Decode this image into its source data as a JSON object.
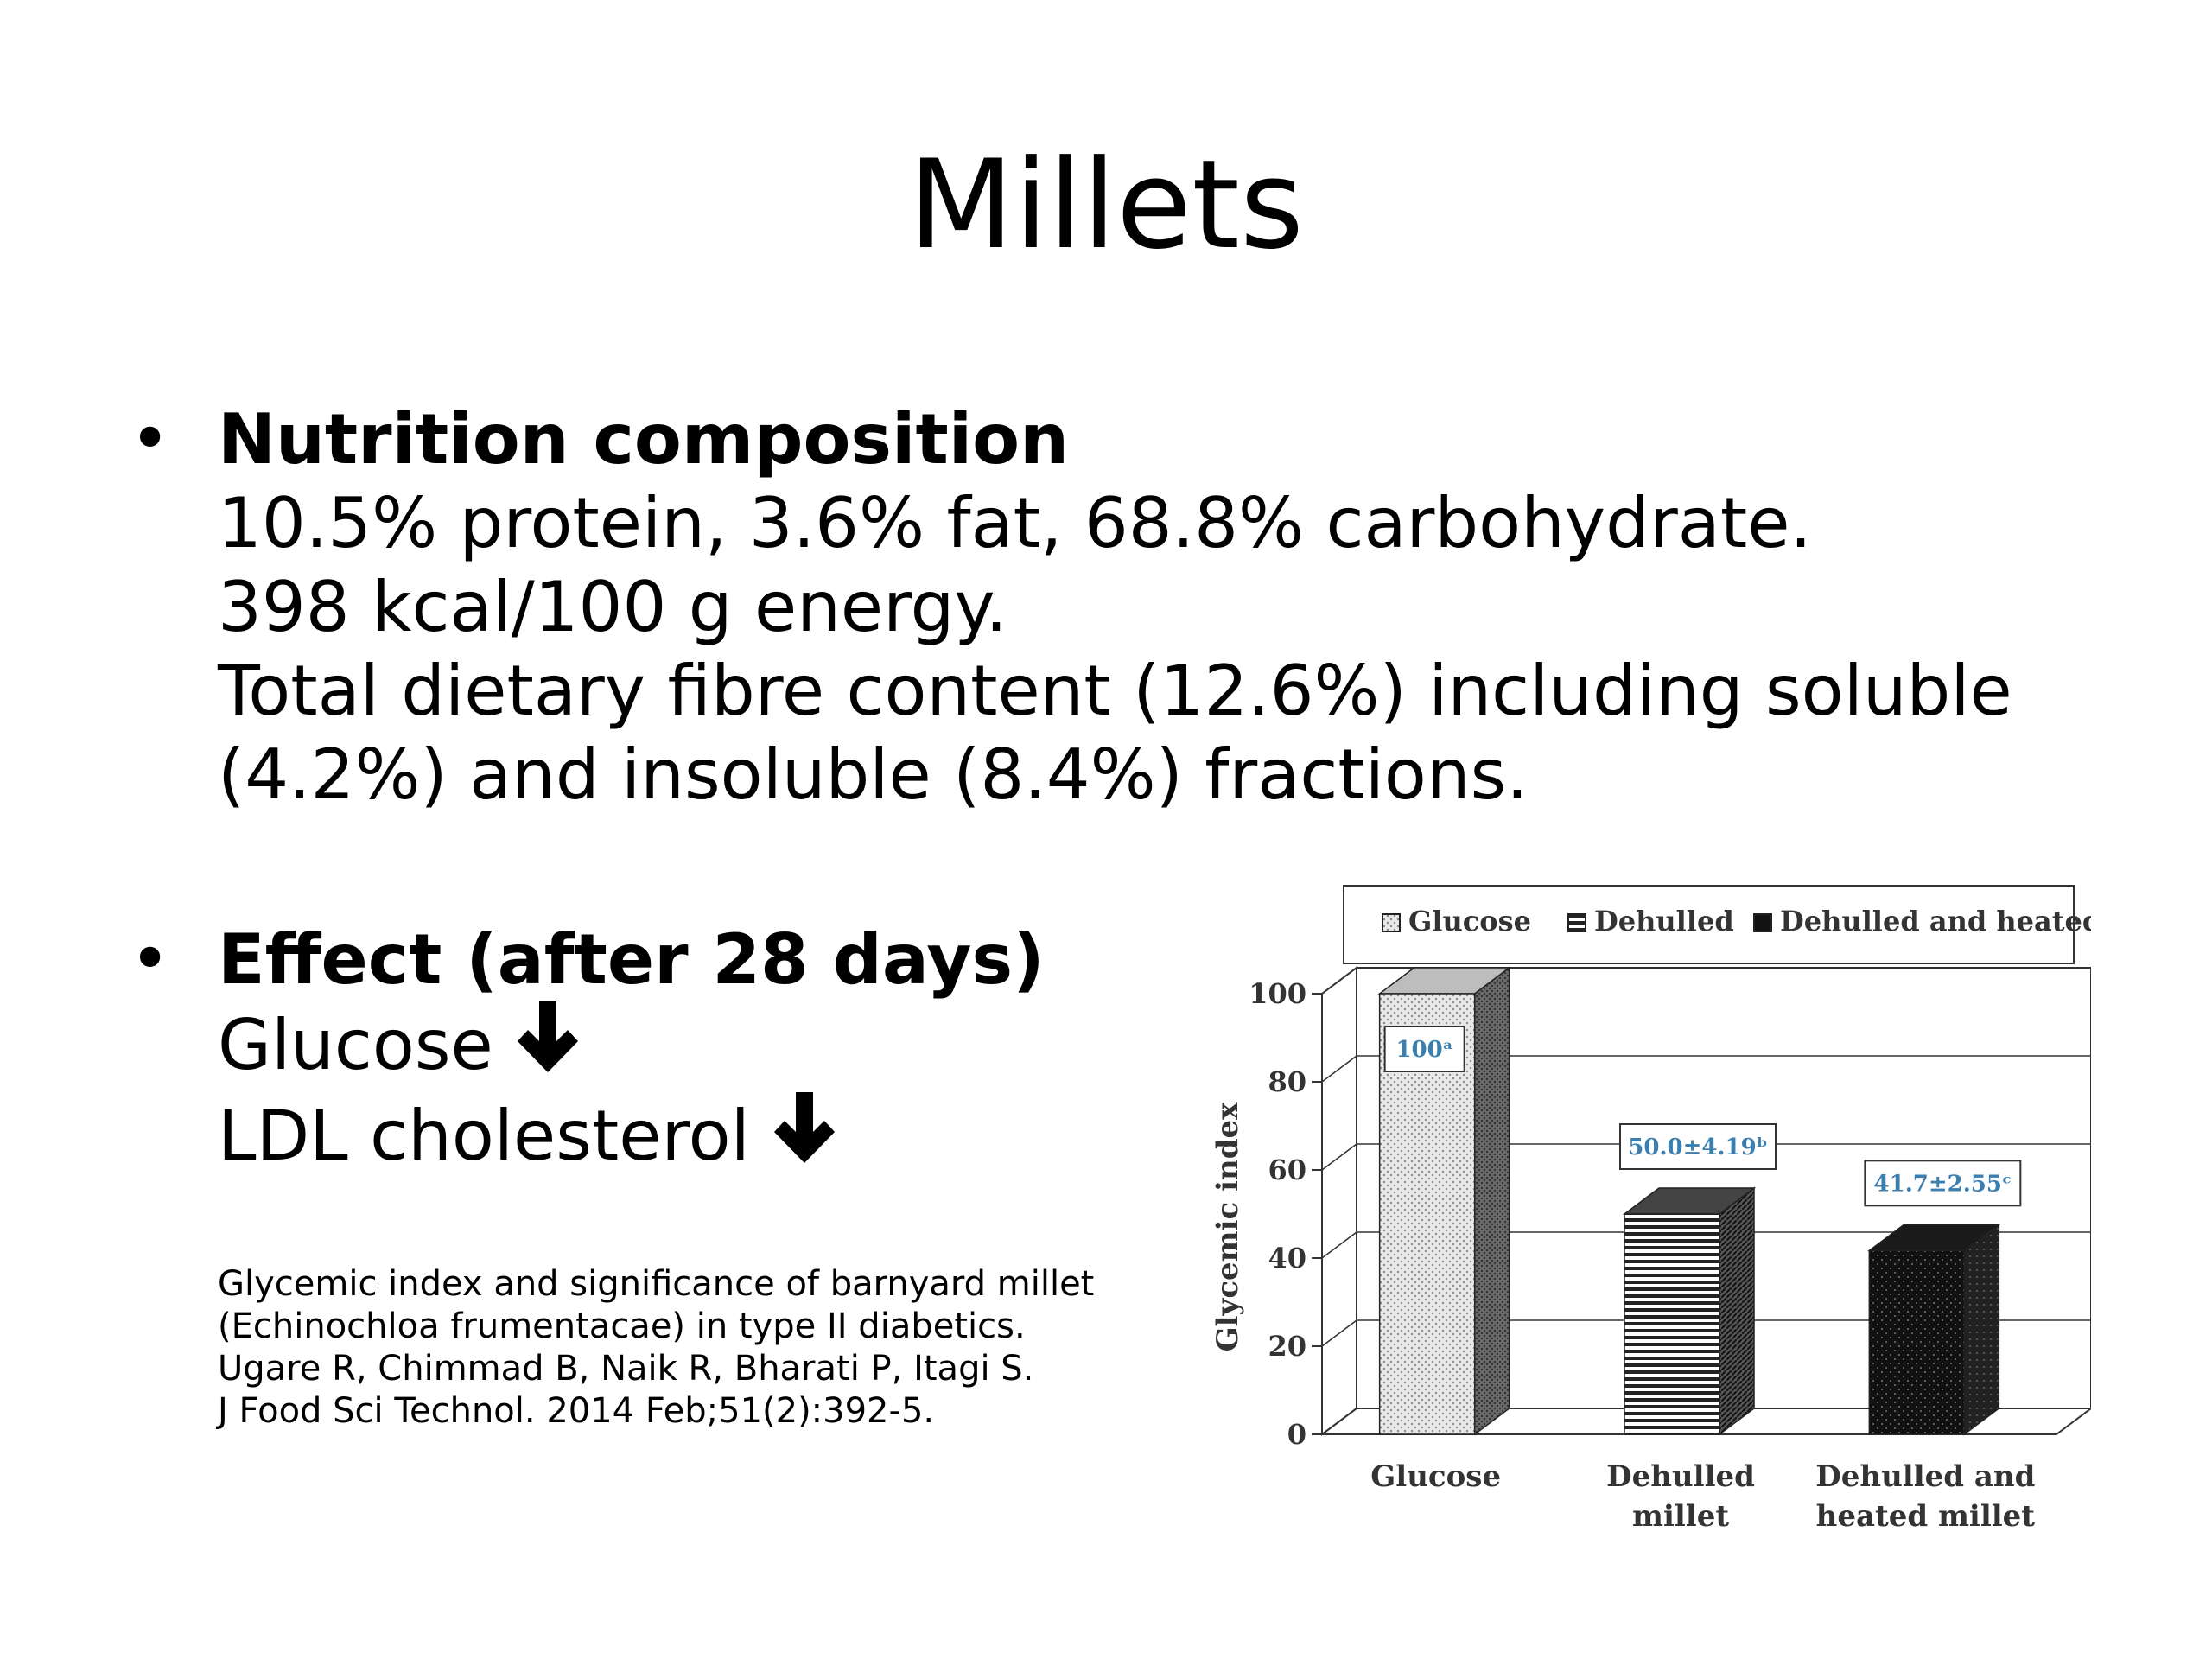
{
  "slide": {
    "title": "Millets",
    "bullet_symbol": "•",
    "bullets": [
      {
        "heading": "Nutrition composition",
        "lines": [
          "10.5% protein, 3.6% fat, 68.8% carbohydrate.",
          "398 kcal/100 g energy.",
          "Total dietary fibre content (12.6%) including soluble",
          "(4.2%) and insoluble (8.4%) fractions."
        ]
      },
      {
        "heading": "Effect (after 28 days)",
        "lines": [
          {
            "text": "Glucose",
            "icon": "down-arrow-icon"
          },
          {
            "text": "LDL cholesterol",
            "icon": "down-arrow-icon"
          }
        ]
      }
    ],
    "citation": [
      "Glycemic index and significance of barnyard millet",
      "(Echinochloa frumentacae) in type II diabetics.",
      "Ugare R, Chimmad B, Naik R, Bharati P, Itagi S.",
      "J Food Sci Technol. 2014 Feb;51(2):392-5."
    ]
  },
  "chart_data": {
    "type": "bar",
    "style": "3d",
    "title": "",
    "xlabel": "",
    "ylabel": "Glycemic index",
    "ylim": [
      0,
      100
    ],
    "yticks": [
      0,
      20,
      40,
      60,
      80,
      100
    ],
    "grid": true,
    "legend_position": "top",
    "categories": [
      [
        "Glucose"
      ],
      [
        "Dehulled",
        "millet"
      ],
      [
        "Dehulled and",
        "heated millet"
      ]
    ],
    "series": [
      {
        "name": "Glucose",
        "pattern": "light-dots",
        "value": 100,
        "label": "100ᵃ"
      },
      {
        "name": "Dehulled",
        "pattern": "horizontal-stripes",
        "value": 50.0,
        "label": "50.0±4.19ᵇ"
      },
      {
        "name": "Dehulled and heated",
        "pattern": "dark-dots",
        "value": 41.7,
        "label": "41.7±2.55ᶜ"
      }
    ],
    "colors": {
      "label_text": "#3a7fb0",
      "axis": "#333333",
      "dark_fill": "#111111"
    }
  }
}
